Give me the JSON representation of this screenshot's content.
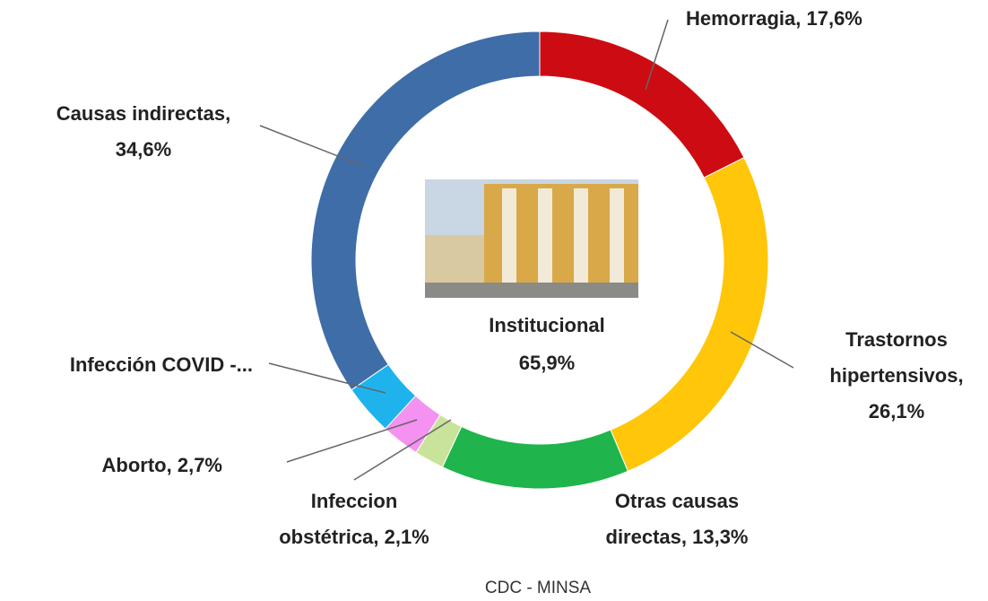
{
  "chart_data": {
    "type": "donut",
    "labels": [
      [
        "Hemorragia, 17,6%"
      ],
      [
        "Trastornos",
        "hipertensivos,",
        "26,1%"
      ],
      [
        "Otras causas",
        "directas, 13,3%"
      ],
      [
        "Infeccion",
        "obstétrica, 2,1%"
      ],
      [
        "Aborto, 2,7%"
      ],
      [
        "Infección COVID -..."
      ],
      [
        "Causas indirectas,",
        "34,6%"
      ]
    ],
    "values": [
      17.6,
      26.1,
      13.3,
      2.1,
      2.7,
      3.6,
      34.6
    ],
    "colors": [
      "#cc0c12",
      "#ffc60a",
      "#1fb44c",
      "#c9e39a",
      "#f491f1",
      "#1fb3ee",
      "#3f6da8"
    ],
    "center_label": [
      "Institucional",
      "65,9%"
    ],
    "source": "CDC -  MINSA"
  }
}
